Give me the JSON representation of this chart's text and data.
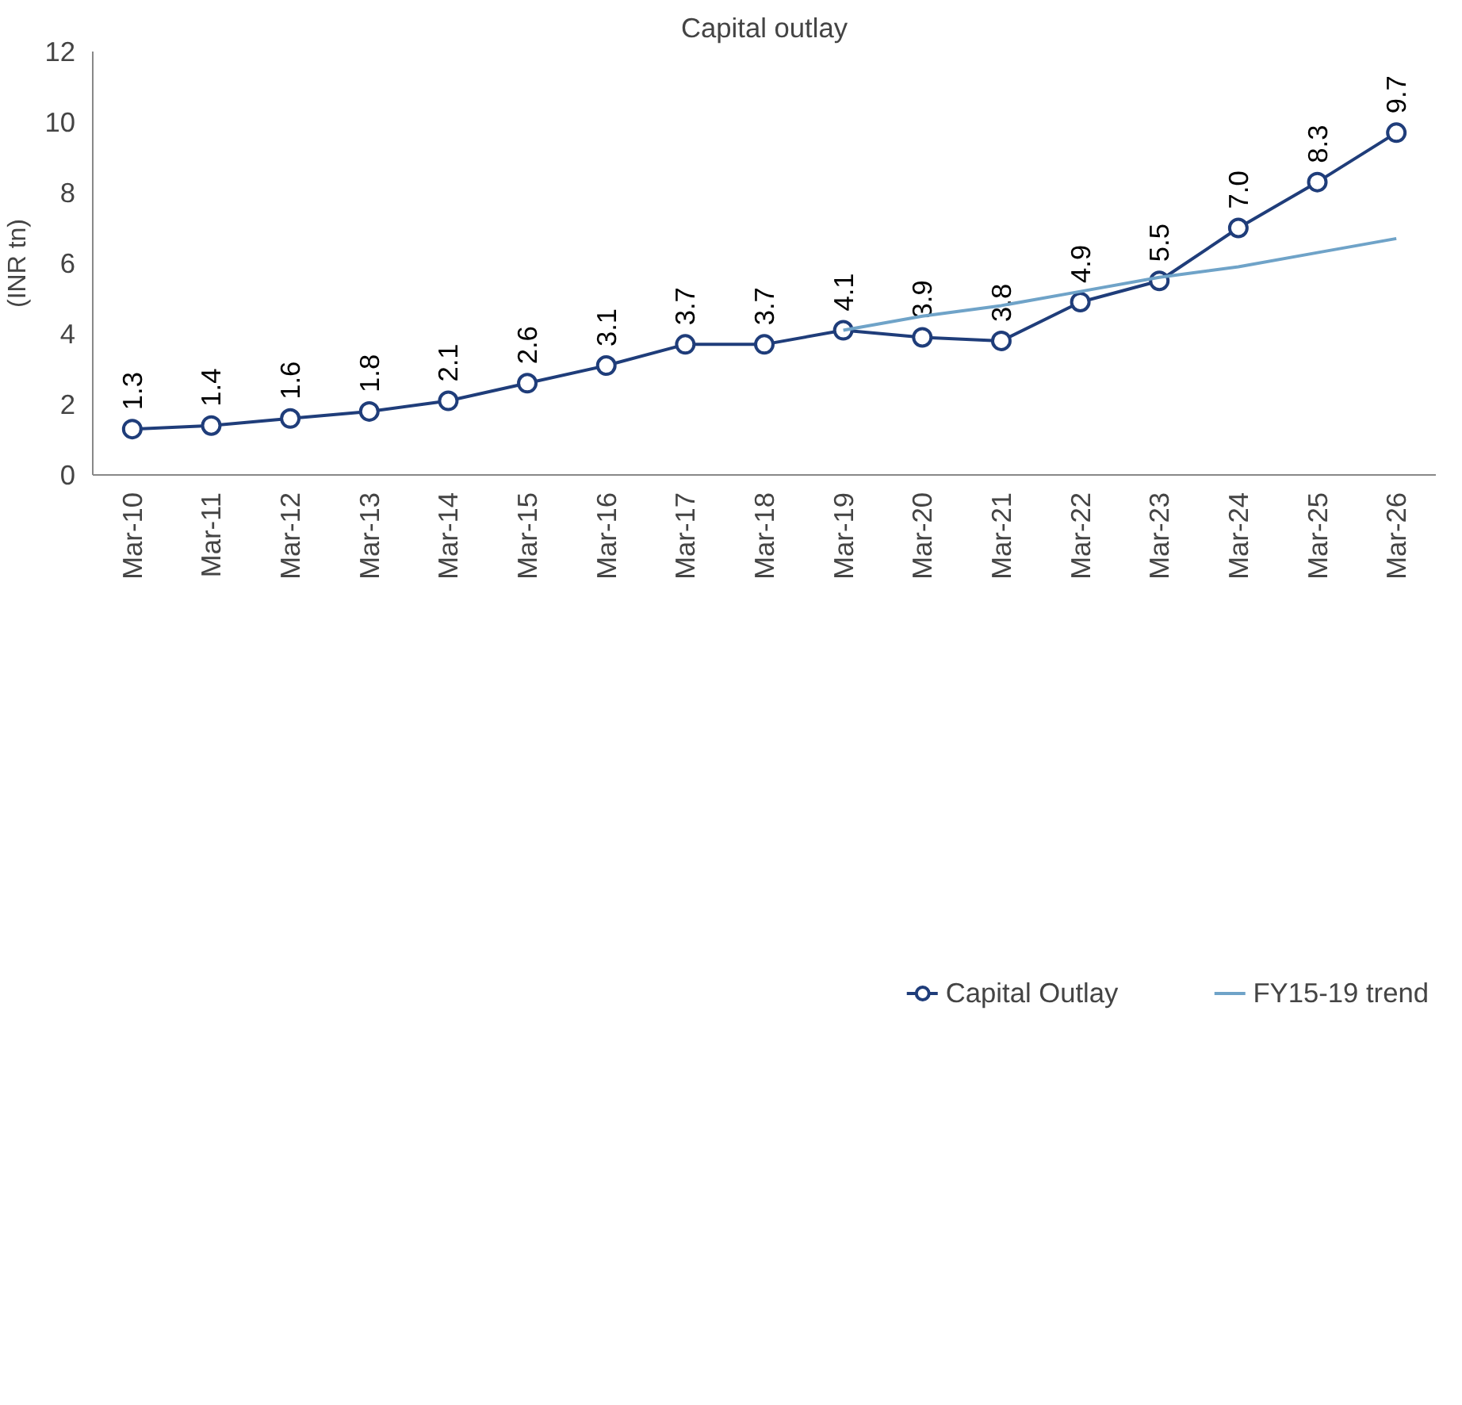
{
  "chart_data": {
    "type": "line",
    "title": "Capital outlay",
    "ylabel": "(INR tn)",
    "categories": [
      "Mar-10",
      "Mar-11",
      "Mar-12",
      "Mar-13",
      "Mar-14",
      "Mar-15",
      "Mar-16",
      "Mar-17",
      "Mar-18",
      "Mar-19",
      "Mar-20",
      "Mar-21",
      "Mar-22",
      "Mar-23",
      "Mar-24",
      "Mar-25",
      "Mar-26"
    ],
    "series": [
      {
        "name": "Capital Outlay",
        "color": "#1f3d7a",
        "marker": "circle",
        "values": [
          1.3,
          1.4,
          1.6,
          1.8,
          2.1,
          2.6,
          3.1,
          3.7,
          3.7,
          4.1,
          3.9,
          3.8,
          4.9,
          5.5,
          7.0,
          8.3,
          9.7
        ],
        "value_labels": [
          "1.3",
          "1.4",
          "1.6",
          "1.8",
          "2.1",
          "2.6",
          "3.1",
          "3.7",
          "3.7",
          "4.1",
          "3.9",
          "3.8",
          "4.9",
          "5.5",
          "7.0",
          "8.3",
          "9.7"
        ]
      },
      {
        "name": "FY15-19 trend",
        "color": "#6fa3c8",
        "marker": "none",
        "values": [
          null,
          null,
          null,
          null,
          null,
          null,
          null,
          null,
          null,
          4.1,
          4.5,
          4.8,
          5.2,
          5.6,
          5.9,
          6.3,
          6.7
        ]
      }
    ],
    "ylim": [
      0,
      12
    ],
    "yticks": [
      0,
      2,
      4,
      6,
      8,
      10,
      12
    ],
    "grid": false,
    "legend": "bottom",
    "line_style": "solid"
  }
}
